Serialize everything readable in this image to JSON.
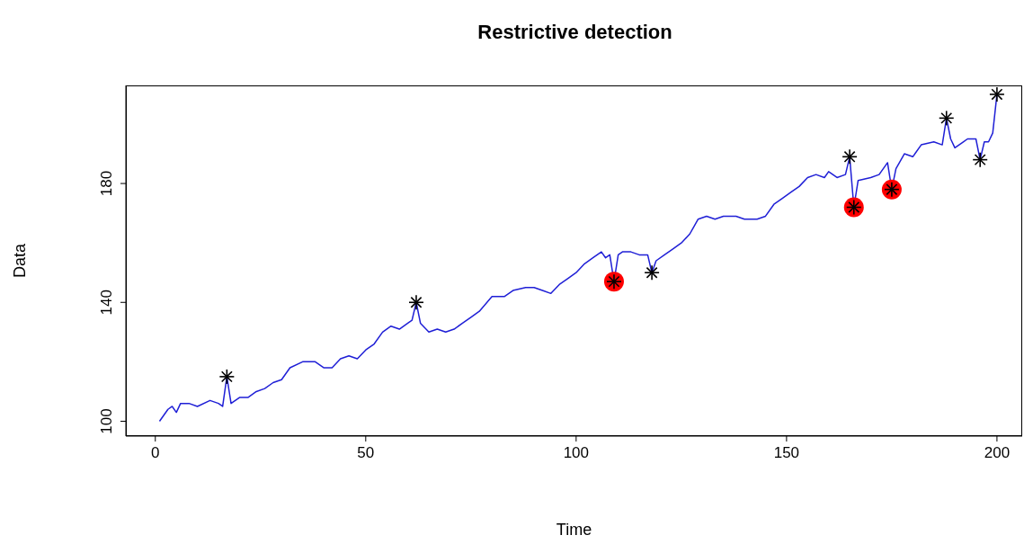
{
  "chart_data": {
    "type": "line",
    "title": "Restrictive detection",
    "xlabel": "Time",
    "ylabel": "Data",
    "xlim": [
      -7,
      206
    ],
    "ylim": [
      95,
      213
    ],
    "xticks": [
      0,
      50,
      100,
      150,
      200
    ],
    "yticks": [
      100,
      140,
      180
    ],
    "series": [
      {
        "color": "#1f1fd6",
        "x": [
          1,
          3,
          4,
          5,
          6,
          8,
          10,
          13,
          15,
          16,
          17,
          18,
          20,
          22,
          24,
          26,
          28,
          30,
          32,
          35,
          38,
          40,
          42,
          44,
          46,
          48,
          50,
          52,
          54,
          56,
          58,
          60,
          61,
          62,
          63,
          65,
          67,
          69,
          71,
          73,
          75,
          77,
          80,
          83,
          85,
          88,
          90,
          92,
          94,
          96,
          98,
          100,
          102,
          104,
          106,
          107,
          108,
          109,
          110,
          111,
          113,
          115,
          117,
          118,
          119,
          121,
          123,
          125,
          127,
          129,
          131,
          133,
          135,
          138,
          140,
          143,
          145,
          147,
          149,
          151,
          153,
          155,
          157,
          159,
          160,
          162,
          164,
          165,
          166,
          167,
          170,
          172,
          174,
          175,
          176,
          178,
          180,
          182,
          185,
          187,
          188,
          189,
          190,
          192,
          193,
          195,
          196,
          197,
          198,
          199,
          200
        ],
        "values": [
          100,
          104,
          105,
          103,
          106,
          106,
          105,
          107,
          106,
          105,
          115,
          106,
          108,
          108,
          110,
          111,
          113,
          114,
          118,
          120,
          120,
          118,
          118,
          121,
          122,
          121,
          124,
          126,
          130,
          132,
          131,
          133,
          134,
          140,
          133,
          130,
          131,
          130,
          131,
          133,
          135,
          137,
          142,
          142,
          144,
          145,
          145,
          144,
          143,
          146,
          148,
          150,
          153,
          155,
          157,
          155,
          156,
          147,
          156,
          157,
          157,
          156,
          156,
          150,
          154,
          156,
          158,
          160,
          163,
          168,
          169,
          168,
          169,
          169,
          168,
          168,
          169,
          173,
          175,
          177,
          179,
          182,
          183,
          182,
          184,
          182,
          183,
          189,
          172,
          181,
          182,
          183,
          187,
          178,
          185,
          190,
          189,
          193,
          194,
          193,
          202,
          195,
          192,
          194,
          195,
          195,
          188,
          194,
          194,
          197,
          210
        ]
      },
      {
        "type": "scatter",
        "marker": "circle",
        "color": "#ff0000",
        "x": [
          109,
          166,
          175
        ],
        "values": [
          147,
          172,
          178
        ]
      },
      {
        "type": "scatter",
        "marker": "cross",
        "color": "#000000",
        "x": [
          17,
          62,
          109,
          118,
          165,
          166,
          175,
          188,
          196,
          200
        ],
        "values": [
          115,
          140,
          147,
          150,
          189,
          172,
          178,
          202,
          188,
          210
        ]
      }
    ]
  }
}
